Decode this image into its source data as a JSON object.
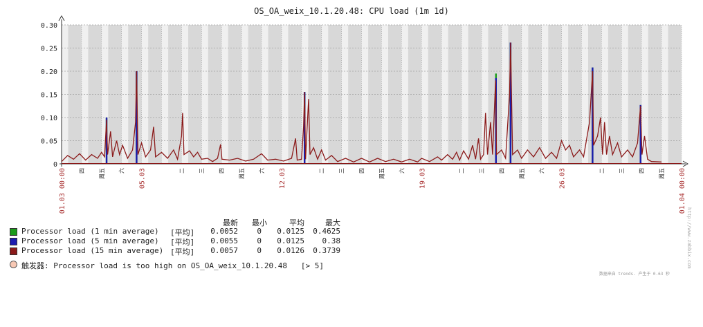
{
  "title": "OS_OA_weix_10.1.20.48: CPU load (1m 1d)",
  "colors": {
    "plot_bg": "#f0f0f0",
    "stripe": "#d8d8d8",
    "grid": "#a0a0a0",
    "series_1m": "#1a9b1a",
    "series_5m": "#1c1caf",
    "series_15m": "#8b1a1a",
    "date_label": "#aa3333",
    "axis_label": "#222222"
  },
  "chart_data": {
    "type": "line",
    "title": "OS_OA_weix_10.1.20.48: CPU load (1m 1d)",
    "xlabel": "",
    "ylabel": "",
    "ylim": [
      0,
      0.3
    ],
    "yticks": [
      "0",
      "0.05",
      "0.10",
      "0.15",
      "0.20",
      "0.25",
      "0.30"
    ],
    "x_range_days": [
      "01.03",
      "01.04"
    ],
    "x_date_labels": [
      {
        "day": 1,
        "label": "01.03 00:00",
        "color": "date"
      },
      {
        "day": 5,
        "label": "05.03",
        "color": "date"
      },
      {
        "day": 12,
        "label": "12.03",
        "color": "date"
      },
      {
        "day": 19,
        "label": "19.03",
        "color": "date"
      },
      {
        "day": 26,
        "label": "26.03",
        "color": "date"
      },
      {
        "day": 32,
        "label": "01.04 00:00",
        "color": "date"
      }
    ],
    "x_weekday_labels": [
      {
        "day": 2,
        "label": "四"
      },
      {
        "day": 3,
        "label": "周五"
      },
      {
        "day": 4,
        "label": "六"
      },
      {
        "day": 7,
        "label": "二"
      },
      {
        "day": 8,
        "label": "三"
      },
      {
        "day": 9,
        "label": "四"
      },
      {
        "day": 10,
        "label": "周五"
      },
      {
        "day": 11,
        "label": "六"
      },
      {
        "day": 14,
        "label": "二"
      },
      {
        "day": 15,
        "label": "三"
      },
      {
        "day": 16,
        "label": "四"
      },
      {
        "day": 17,
        "label": "周五"
      },
      {
        "day": 18,
        "label": "六"
      },
      {
        "day": 21,
        "label": "二"
      },
      {
        "day": 22,
        "label": "三"
      },
      {
        "day": 23,
        "label": "四"
      },
      {
        "day": 24,
        "label": "周五"
      },
      {
        "day": 25,
        "label": "六"
      },
      {
        "day": 28,
        "label": "二"
      },
      {
        "day": 29,
        "label": "三"
      },
      {
        "day": 30,
        "label": "四"
      },
      {
        "day": 31,
        "label": "周五"
      }
    ],
    "grid": true,
    "legend_position": "bottom-left",
    "series": [
      {
        "name": "Processor load (1 min average)",
        "peaks": [
          [
            3.25,
            0.1
          ],
          [
            4.75,
            0.2
          ],
          [
            13.15,
            0.155
          ],
          [
            22.72,
            0.195
          ],
          [
            23.45,
            0.262
          ],
          [
            27.55,
            0.208
          ],
          [
            29.95,
            0.127
          ]
        ]
      },
      {
        "name": "Processor load (5 min average)",
        "peaks": [
          [
            3.25,
            0.1
          ],
          [
            4.75,
            0.2
          ],
          [
            13.15,
            0.155
          ],
          [
            22.72,
            0.185
          ],
          [
            23.45,
            0.262
          ],
          [
            27.55,
            0.208
          ],
          [
            29.95,
            0.127
          ]
        ]
      },
      {
        "name": "Processor load (15 min average)",
        "points": [
          [
            1.0,
            0.005
          ],
          [
            1.3,
            0.018
          ],
          [
            1.6,
            0.01
          ],
          [
            1.9,
            0.022
          ],
          [
            2.2,
            0.008
          ],
          [
            2.5,
            0.02
          ],
          [
            2.8,
            0.012
          ],
          [
            3.0,
            0.025
          ],
          [
            3.15,
            0.015
          ],
          [
            3.25,
            0.095
          ],
          [
            3.3,
            0.02
          ],
          [
            3.45,
            0.07
          ],
          [
            3.55,
            0.015
          ],
          [
            3.75,
            0.05
          ],
          [
            3.9,
            0.02
          ],
          [
            4.05,
            0.04
          ],
          [
            4.3,
            0.012
          ],
          [
            4.55,
            0.03
          ],
          [
            4.7,
            0.09
          ],
          [
            4.75,
            0.2
          ],
          [
            4.82,
            0.02
          ],
          [
            5.0,
            0.045
          ],
          [
            5.2,
            0.015
          ],
          [
            5.45,
            0.03
          ],
          [
            5.6,
            0.08
          ],
          [
            5.7,
            0.015
          ],
          [
            6.0,
            0.025
          ],
          [
            6.3,
            0.012
          ],
          [
            6.6,
            0.03
          ],
          [
            6.8,
            0.01
          ],
          [
            7.0,
            0.06
          ],
          [
            7.05,
            0.11
          ],
          [
            7.12,
            0.02
          ],
          [
            7.4,
            0.028
          ],
          [
            7.6,
            0.015
          ],
          [
            7.8,
            0.025
          ],
          [
            8.0,
            0.01
          ],
          [
            8.3,
            0.012
          ],
          [
            8.55,
            0.005
          ],
          [
            8.8,
            0.012
          ],
          [
            8.95,
            0.042
          ],
          [
            9.02,
            0.01
          ],
          [
            9.4,
            0.008
          ],
          [
            9.8,
            0.012
          ],
          [
            10.2,
            0.006
          ],
          [
            10.6,
            0.01
          ],
          [
            11.0,
            0.022
          ],
          [
            11.3,
            0.008
          ],
          [
            11.7,
            0.01
          ],
          [
            12.1,
            0.006
          ],
          [
            12.5,
            0.012
          ],
          [
            12.7,
            0.055
          ],
          [
            12.78,
            0.008
          ],
          [
            13.0,
            0.01
          ],
          [
            13.1,
            0.08
          ],
          [
            13.15,
            0.155
          ],
          [
            13.2,
            0.01
          ],
          [
            13.35,
            0.14
          ],
          [
            13.42,
            0.02
          ],
          [
            13.6,
            0.035
          ],
          [
            13.8,
            0.01
          ],
          [
            14.0,
            0.03
          ],
          [
            14.2,
            0.008
          ],
          [
            14.5,
            0.018
          ],
          [
            14.8,
            0.005
          ],
          [
            15.2,
            0.012
          ],
          [
            15.6,
            0.004
          ],
          [
            16.0,
            0.012
          ],
          [
            16.4,
            0.004
          ],
          [
            16.8,
            0.012
          ],
          [
            17.2,
            0.005
          ],
          [
            17.6,
            0.01
          ],
          [
            18.0,
            0.004
          ],
          [
            18.4,
            0.01
          ],
          [
            18.8,
            0.004
          ],
          [
            19.0,
            0.012
          ],
          [
            19.4,
            0.005
          ],
          [
            19.8,
            0.015
          ],
          [
            20.0,
            0.008
          ],
          [
            20.3,
            0.02
          ],
          [
            20.55,
            0.01
          ],
          [
            20.75,
            0.025
          ],
          [
            20.9,
            0.008
          ],
          [
            21.1,
            0.028
          ],
          [
            21.35,
            0.01
          ],
          [
            21.55,
            0.04
          ],
          [
            21.7,
            0.01
          ],
          [
            21.85,
            0.055
          ],
          [
            21.95,
            0.01
          ],
          [
            22.1,
            0.02
          ],
          [
            22.2,
            0.11
          ],
          [
            22.3,
            0.02
          ],
          [
            22.45,
            0.09
          ],
          [
            22.55,
            0.02
          ],
          [
            22.7,
            0.18
          ],
          [
            22.75,
            0.02
          ],
          [
            23.0,
            0.03
          ],
          [
            23.2,
            0.012
          ],
          [
            23.4,
            0.15
          ],
          [
            23.45,
            0.262
          ],
          [
            23.55,
            0.02
          ],
          [
            23.8,
            0.03
          ],
          [
            24.0,
            0.012
          ],
          [
            24.3,
            0.03
          ],
          [
            24.6,
            0.015
          ],
          [
            24.9,
            0.035
          ],
          [
            25.2,
            0.012
          ],
          [
            25.5,
            0.025
          ],
          [
            25.75,
            0.012
          ],
          [
            26.0,
            0.05
          ],
          [
            26.2,
            0.03
          ],
          [
            26.4,
            0.04
          ],
          [
            26.6,
            0.015
          ],
          [
            26.9,
            0.03
          ],
          [
            27.1,
            0.015
          ],
          [
            27.4,
            0.09
          ],
          [
            27.55,
            0.2
          ],
          [
            27.6,
            0.04
          ],
          [
            27.8,
            0.06
          ],
          [
            27.95,
            0.1
          ],
          [
            28.05,
            0.02
          ],
          [
            28.15,
            0.09
          ],
          [
            28.25,
            0.02
          ],
          [
            28.4,
            0.06
          ],
          [
            28.55,
            0.02
          ],
          [
            28.8,
            0.045
          ],
          [
            29.0,
            0.015
          ],
          [
            29.3,
            0.03
          ],
          [
            29.55,
            0.015
          ],
          [
            29.8,
            0.045
          ],
          [
            29.95,
            0.125
          ],
          [
            30.02,
            0.02
          ],
          [
            30.15,
            0.06
          ],
          [
            30.3,
            0.01
          ],
          [
            30.5,
            0.005
          ],
          [
            31.0,
            0.004
          ]
        ]
      }
    ]
  },
  "legend": {
    "headers": [
      "最新",
      "最小",
      "平均",
      "最大"
    ],
    "rows": [
      {
        "name": "Processor load (1 min average)",
        "func": "[平均]",
        "last": "0.0052",
        "min": "0",
        "avg": "0.0125",
        "max": "0.4625",
        "color": "#1a9b1a"
      },
      {
        "name": "Processor load (5 min average)",
        "func": "[平均]",
        "last": "0.0055",
        "min": "0",
        "avg": "0.0125",
        "max": "0.38",
        "color": "#1c1caf"
      },
      {
        "name": "Processor load (15 min average)",
        "func": "[平均]",
        "last": "0.0057",
        "min": "0",
        "avg": "0.0126",
        "max": "0.3739",
        "color": "#8b1a1a"
      }
    ]
  },
  "trigger": {
    "text": "触发器: Processor load is too high on OS_OA_weix_10.1.20.48   [> 5]"
  },
  "footer": "数据来自 trends. 产生于 0.63 秒",
  "side_url": "http://www.zabbix.com"
}
